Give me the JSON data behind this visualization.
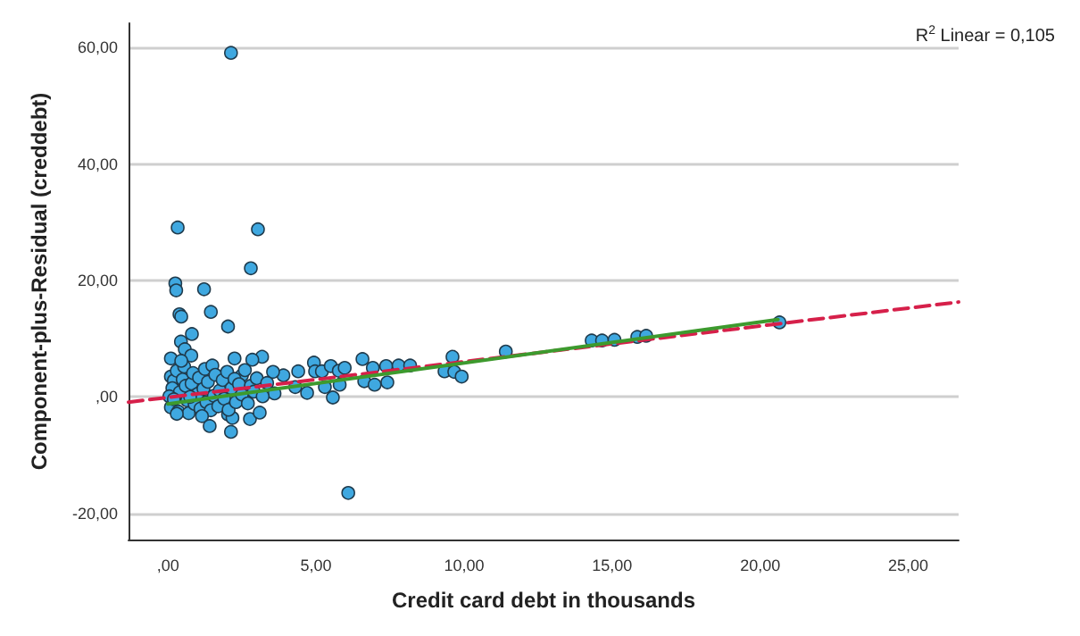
{
  "chart_data": {
    "type": "scatter",
    "xlabel": "Credit card debt in thousands",
    "ylabel": "Component-plus-Residual (creddebt)",
    "annotations": [
      "R$^{2}$ Linear = 0,105"
    ],
    "xlim": [
      -1.33,
      26.7
    ],
    "ylim": [
      -24.5,
      64.2
    ],
    "xticks": [
      {
        "value": 0,
        "label": ",00"
      },
      {
        "value": 5,
        "label": "5,00"
      },
      {
        "value": 10,
        "label": "10,00"
      },
      {
        "value": 15,
        "label": "15,00"
      },
      {
        "value": 20,
        "label": "20,00"
      },
      {
        "value": 25,
        "label": "25,00"
      }
    ],
    "yticks": [
      {
        "value": -20,
        "label": "-20,00"
      },
      {
        "value": 0,
        "label": ",00"
      },
      {
        "value": 20,
        "label": "20,00"
      },
      {
        "value": 40,
        "label": "40,00"
      },
      {
        "value": 60,
        "label": "60,00"
      }
    ],
    "grid": "y",
    "series": [
      {
        "marker": "circle",
        "color": "#3fa8e0",
        "x": [
          2.13,
          0.33,
          3.04,
          2.8,
          0.25,
          0.28,
          1.22,
          0.39,
          0.45,
          1.45,
          2.03,
          0.81,
          0.44,
          0.57,
          0.79,
          0.1,
          6.09,
          1.41,
          2.13,
          2.77,
          3.1,
          2.03,
          2.18,
          9.61,
          9.34,
          9.67,
          9.92,
          11.41,
          14.31,
          14.66,
          15.08,
          15.85,
          16.15,
          20.65,
          4.93,
          4.97,
          5.2,
          5.5,
          5.77,
          5.97,
          6.57,
          6.63,
          6.92,
          6.98,
          7.37,
          7.41,
          7.79,
          8.18,
          5.57,
          5.8,
          5.3,
          4.7,
          4.3,
          4.4,
          3.9,
          3.6,
          3.55,
          3.18,
          2.85,
          2.25,
          2.5,
          0.1,
          0.2,
          0.15,
          0.3,
          0.1,
          0.4,
          0.35,
          0.5,
          0.55,
          0.6,
          0.65,
          0.7,
          0.8,
          0.85,
          0.9,
          1.0,
          1.05,
          1.1,
          1.2,
          1.25,
          1.3,
          1.35,
          1.45,
          1.5,
          1.55,
          1.6,
          1.7,
          1.75,
          1.85,
          1.9,
          2.0,
          2.05,
          2.15,
          2.25,
          2.3,
          2.4,
          2.5,
          2.6,
          2.7,
          2.8,
          2.9,
          3.0,
          3.2,
          3.35,
          0.05,
          0.2,
          0.45,
          0.75,
          1.15,
          0.3
        ],
        "values": [
          59.1,
          29.1,
          28.8,
          22.1,
          19.5,
          18.3,
          18.5,
          14.2,
          13.8,
          14.6,
          12.1,
          10.8,
          9.5,
          8.2,
          7.1,
          6.6,
          -16.5,
          -5.0,
          -6.0,
          -3.8,
          -2.7,
          -3.0,
          -3.6,
          6.9,
          4.4,
          4.3,
          3.5,
          7.8,
          9.7,
          9.7,
          9.8,
          10.3,
          10.5,
          12.8,
          5.9,
          4.4,
          4.4,
          5.3,
          4.5,
          5.0,
          6.5,
          2.7,
          5.0,
          2.1,
          5.3,
          2.5,
          5.4,
          5.4,
          -0.1,
          2.1,
          1.7,
          0.7,
          1.7,
          4.4,
          3.7,
          0.6,
          4.3,
          6.9,
          6.4,
          6.6,
          3.7,
          3.5,
          2.8,
          1.5,
          4.5,
          -1.8,
          0.8,
          -2.5,
          3.0,
          5.2,
          1.9,
          -0.6,
          -2.8,
          2.3,
          4.1,
          -1.2,
          0.5,
          3.3,
          -2.0,
          1.4,
          4.8,
          -0.9,
          2.6,
          -2.3,
          5.4,
          0.2,
          3.8,
          -1.6,
          1.1,
          2.9,
          -0.3,
          4.3,
          -2.2,
          1.5,
          3.1,
          -0.9,
          2.2,
          0.4,
          4.6,
          -1.1,
          1.9,
          0.9,
          3.2,
          0.1,
          2.4,
          0.1,
          -0.4,
          6.2,
          0.0,
          -3.3,
          -2.9
        ]
      },
      {
        "type": "line",
        "marker": "none",
        "line_style": "dashed",
        "color": "#d6204a",
        "x": [
          -1.33,
          26.7
        ],
        "values": [
          -0.9,
          16.3
        ]
      },
      {
        "type": "line",
        "marker": "none",
        "line_style": "solid",
        "color": "#3d9a2e",
        "x": [
          0.0,
          20.6
        ],
        "values": [
          -1.2,
          13.3
        ]
      }
    ]
  }
}
